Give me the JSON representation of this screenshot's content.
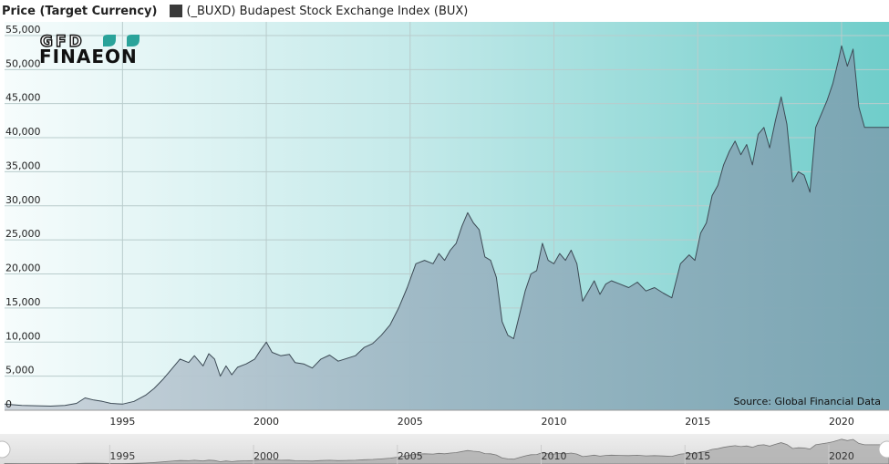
{
  "chart_data": {
    "type": "area",
    "title": "",
    "ylabel": "Price (Target Currency)",
    "xlabel": "",
    "legend": {
      "position": "top-left",
      "entries": [
        "(_BUXD) Budapest Stock Exchange Index (BUX)"
      ]
    },
    "source_note": "Source: Global Financial Data",
    "logo_text": [
      "GFD",
      "FINAEON"
    ],
    "xlim": [
      1990.9,
      2021.65
    ],
    "ylim": [
      0,
      57000
    ],
    "grid": true,
    "x_ticks": [
      1995,
      2000,
      2005,
      2010,
      2015,
      2020
    ],
    "x_tick_labels": [
      "1995",
      "2000",
      "2005",
      "2010",
      "2015",
      "2020"
    ],
    "y_ticks": [
      0,
      5000,
      10000,
      15000,
      20000,
      25000,
      30000,
      35000,
      40000,
      45000,
      50000,
      55000
    ],
    "y_tick_labels": [
      "0",
      "5,000",
      "10,000",
      "15,000",
      "20,000",
      "25,000",
      "30,000",
      "35,000",
      "40,000",
      "45,000",
      "50,000",
      "55,000"
    ],
    "navigator_labels": [
      "1995",
      "2000",
      "2005",
      "2010",
      "2015",
      "2020"
    ],
    "series": [
      {
        "name": "(_BUXD) Budapest Stock Exchange Index (BUX)",
        "x": [
          1990.9,
          1991.5,
          1992.0,
          1992.5,
          1993.0,
          1993.4,
          1993.7,
          1994.0,
          1994.3,
          1994.6,
          1995.0,
          1995.4,
          1995.8,
          1996.1,
          1996.4,
          1996.7,
          1997.0,
          1997.3,
          1997.5,
          1997.8,
          1998.0,
          1998.2,
          1998.4,
          1998.6,
          1998.8,
          1999.0,
          1999.3,
          1999.6,
          1999.8,
          2000.0,
          2000.2,
          2000.5,
          2000.8,
          2001.0,
          2001.3,
          2001.6,
          2001.9,
          2002.2,
          2002.5,
          2002.8,
          2003.1,
          2003.4,
          2003.7,
          2004.0,
          2004.3,
          2004.6,
          2004.9,
          2005.2,
          2005.5,
          2005.8,
          2006.0,
          2006.2,
          2006.4,
          2006.6,
          2006.8,
          2007.0,
          2007.2,
          2007.4,
          2007.6,
          2007.8,
          2008.0,
          2008.2,
          2008.4,
          2008.6,
          2008.8,
          2009.0,
          2009.2,
          2009.4,
          2009.6,
          2009.8,
          2010.0,
          2010.2,
          2010.4,
          2010.6,
          2010.8,
          2011.0,
          2011.2,
          2011.4,
          2011.6,
          2011.8,
          2012.0,
          2012.3,
          2012.6,
          2012.9,
          2013.2,
          2013.5,
          2013.8,
          2014.1,
          2014.4,
          2014.7,
          2014.9,
          2015.1,
          2015.3,
          2015.5,
          2015.7,
          2015.9,
          2016.1,
          2016.3,
          2016.5,
          2016.7,
          2016.9,
          2017.1,
          2017.3,
          2017.5,
          2017.7,
          2017.9,
          2018.1,
          2018.3,
          2018.5,
          2018.7,
          2018.9,
          2019.1,
          2019.3,
          2019.5,
          2019.7,
          2019.9,
          2020.0,
          2020.2,
          2020.4,
          2020.6,
          2020.8,
          2021.0,
          2021.1,
          2021.3,
          2021.5,
          2021.65
        ],
        "values": [
          900,
          700,
          650,
          600,
          700,
          1000,
          1800,
          1500,
          1300,
          1000,
          900,
          1300,
          2200,
          3200,
          4500,
          6000,
          7500,
          7000,
          8000,
          6500,
          8300,
          7500,
          5000,
          6500,
          5200,
          6300,
          6800,
          7500,
          8800,
          10000,
          8500,
          8000,
          8200,
          7000,
          6800,
          6200,
          7500,
          8100,
          7200,
          7600,
          8000,
          9200,
          9800,
          11000,
          12500,
          15000,
          18000,
          21500,
          22000,
          21500,
          23000,
          22000,
          23500,
          24500,
          27000,
          29000,
          27500,
          26500,
          22500,
          22000,
          19500,
          13000,
          11000,
          10500,
          14000,
          17500,
          20000,
          20500,
          24500,
          22000,
          21500,
          23000,
          22000,
          23500,
          21500,
          16000,
          17500,
          19000,
          17000,
          18500,
          19000,
          18500,
          18000,
          18800,
          17500,
          18000,
          17200,
          16500,
          21500,
          22800,
          22000,
          26000,
          27500,
          31500,
          33000,
          36000,
          38000,
          39500,
          37500,
          39000,
          36000,
          40500,
          41500,
          38500,
          42500,
          46000,
          42000,
          33500,
          35000,
          34500,
          32000,
          41500,
          43500,
          45500,
          48000,
          51500,
          53500,
          50500,
          53000,
          44500,
          41500,
          41500,
          41500,
          41500,
          41500,
          41500
        ]
      }
    ]
  }
}
